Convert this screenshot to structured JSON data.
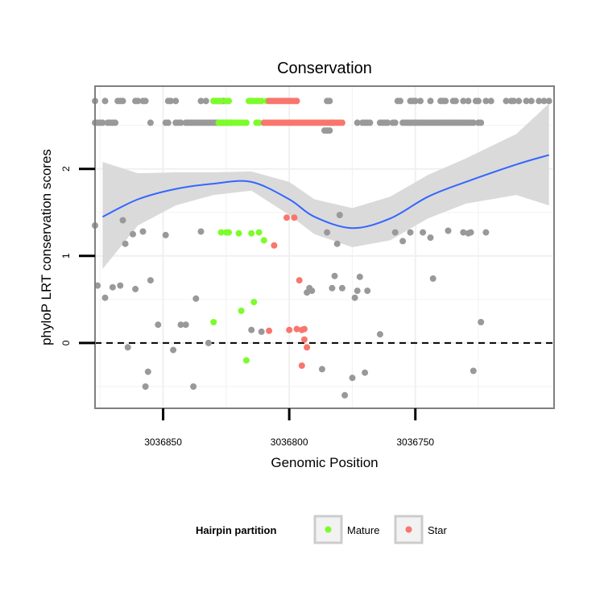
{
  "chart_data": {
    "type": "scatter",
    "title": "Conservation",
    "xlabel": "Genomic Position",
    "ylabel": "phyloP LRT conservation scores",
    "x_reversed": true,
    "xlim": [
      3036877,
      3036695
    ],
    "ylim": [
      -0.75,
      2.95
    ],
    "x_ticks": [
      3036850,
      3036800,
      3036750
    ],
    "x_tick_labels": [
      "3036850",
      "3036800",
      "3036750"
    ],
    "y_ticks": [
      0,
      1,
      2
    ],
    "y_tick_labels": [
      "0",
      "1",
      "2"
    ],
    "reference_line": {
      "y": 0,
      "style": "dashed"
    },
    "grid": true,
    "colors": {
      "Other": "#999999",
      "Mature": "#7cfc2a",
      "Star": "#f8766d",
      "smooth": "#3366ff",
      "ribbon": "#d6d6d6"
    },
    "legend": {
      "title": "Hairpin partition",
      "position": "bottom",
      "entries": [
        {
          "label": "Mature",
          "color": "#7cfc2a"
        },
        {
          "label": "Star",
          "color": "#f8766d"
        }
      ]
    },
    "smooth": {
      "x": [
        3036874,
        3036860,
        3036845,
        3036830,
        3036815,
        3036800,
        3036790,
        3036775,
        3036760,
        3036745,
        3036730,
        3036710,
        3036697
      ],
      "y": [
        1.45,
        1.65,
        1.77,
        1.83,
        1.85,
        1.65,
        1.45,
        1.32,
        1.43,
        1.68,
        1.85,
        2.05,
        2.16
      ],
      "ymin": [
        0.85,
        1.35,
        1.58,
        1.7,
        1.75,
        1.47,
        1.25,
        1.1,
        1.18,
        1.43,
        1.6,
        1.7,
        1.58
      ],
      "ymax": [
        2.08,
        1.95,
        1.96,
        1.96,
        1.97,
        1.85,
        1.65,
        1.55,
        1.68,
        1.93,
        2.12,
        2.4,
        2.75
      ]
    },
    "series": [
      {
        "name": "Other",
        "color": "#999999",
        "points": [
          [
            3036877,
            1.35
          ],
          [
            3036876,
            0.66
          ],
          [
            3036873,
            0.52
          ],
          [
            3036870,
            0.64
          ],
          [
            3036867,
            0.66
          ],
          [
            3036866,
            1.41
          ],
          [
            3036865,
            1.14
          ],
          [
            3036864,
            -0.05
          ],
          [
            3036862,
            1.25
          ],
          [
            3036861,
            0.62
          ],
          [
            3036858,
            1.28
          ],
          [
            3036857,
            -0.5
          ],
          [
            3036856,
            -0.33
          ],
          [
            3036855,
            0.72
          ],
          [
            3036852,
            0.21
          ],
          [
            3036849,
            1.24
          ],
          [
            3036846,
            -0.08
          ],
          [
            3036843,
            0.21
          ],
          [
            3036841,
            0.21
          ],
          [
            3036838,
            -0.5
          ],
          [
            3036837,
            0.51
          ],
          [
            3036835,
            1.28
          ],
          [
            3036832,
            0.0
          ],
          [
            3036815,
            0.15
          ],
          [
            3036811,
            0.13
          ],
          [
            3036793,
            0.58
          ],
          [
            3036792,
            0.63
          ],
          [
            3036791,
            0.6
          ],
          [
            3036787,
            -0.3
          ],
          [
            3036785,
            1.27
          ],
          [
            3036783,
            0.63
          ],
          [
            3036782,
            0.77
          ],
          [
            3036781,
            1.14
          ],
          [
            3036780,
            1.47
          ],
          [
            3036779,
            0.63
          ],
          [
            3036778,
            -0.6
          ],
          [
            3036775,
            -0.4
          ],
          [
            3036774,
            0.52
          ],
          [
            3036773,
            0.6
          ],
          [
            3036772,
            0.76
          ],
          [
            3036770,
            -0.34
          ],
          [
            3036769,
            0.6
          ],
          [
            3036764,
            0.1
          ],
          [
            3036758,
            1.27
          ],
          [
            3036755,
            1.17
          ],
          [
            3036752,
            1.27
          ],
          [
            3036747,
            1.27
          ],
          [
            3036744,
            1.21
          ],
          [
            3036743,
            0.74
          ],
          [
            3036737,
            1.29
          ],
          [
            3036731,
            1.27
          ],
          [
            3036729,
            1.26
          ],
          [
            3036728,
            1.27
          ],
          [
            3036727,
            -0.32
          ],
          [
            3036724,
            0.24
          ],
          [
            3036722,
            1.27
          ],
          [
            3036877,
            2.78
          ],
          [
            3036873,
            2.78
          ],
          [
            3036868,
            2.78
          ],
          [
            3036867,
            2.78
          ],
          [
            3036866,
            2.78
          ],
          [
            3036861,
            2.78
          ],
          [
            3036860,
            2.78
          ],
          [
            3036858,
            2.78
          ],
          [
            3036857,
            2.78
          ],
          [
            3036848,
            2.78
          ],
          [
            3036847,
            2.78
          ],
          [
            3036845,
            2.78
          ],
          [
            3036835,
            2.78
          ],
          [
            3036833,
            2.78
          ],
          [
            3036830,
            2.78
          ],
          [
            3036829,
            2.78
          ],
          [
            3036828,
            2.78
          ],
          [
            3036827,
            2.78
          ],
          [
            3036826,
            2.78
          ],
          [
            3036785,
            2.78
          ],
          [
            3036784,
            2.78
          ],
          [
            3036757,
            2.78
          ],
          [
            3036756,
            2.78
          ],
          [
            3036752,
            2.78
          ],
          [
            3036751,
            2.78
          ],
          [
            3036750,
            2.78
          ],
          [
            3036748,
            2.78
          ],
          [
            3036744,
            2.78
          ],
          [
            3036740,
            2.78
          ],
          [
            3036739,
            2.78
          ],
          [
            3036738,
            2.78
          ],
          [
            3036735,
            2.78
          ],
          [
            3036734,
            2.78
          ],
          [
            3036731,
            2.78
          ],
          [
            3036729,
            2.78
          ],
          [
            3036726,
            2.78
          ],
          [
            3036725,
            2.78
          ],
          [
            3036722,
            2.78
          ],
          [
            3036720,
            2.78
          ],
          [
            3036714,
            2.78
          ],
          [
            3036712,
            2.78
          ],
          [
            3036711,
            2.78
          ],
          [
            3036709,
            2.78
          ],
          [
            3036706,
            2.78
          ],
          [
            3036704,
            2.78
          ],
          [
            3036701,
            2.78
          ],
          [
            3036699,
            2.78
          ],
          [
            3036697,
            2.78
          ],
          [
            3036877,
            2.53
          ],
          [
            3036876,
            2.53
          ],
          [
            3036875,
            2.53
          ],
          [
            3036874,
            2.53
          ],
          [
            3036872,
            2.53
          ],
          [
            3036871,
            2.53
          ],
          [
            3036870,
            2.53
          ],
          [
            3036869,
            2.53
          ],
          [
            3036855,
            2.53
          ],
          [
            3036849,
            2.53
          ],
          [
            3036848,
            2.53
          ],
          [
            3036845,
            2.53
          ],
          [
            3036844,
            2.53
          ],
          [
            3036843,
            2.53
          ],
          [
            3036841,
            2.53
          ],
          [
            3036840,
            2.53
          ],
          [
            3036839,
            2.53
          ],
          [
            3036838,
            2.53
          ],
          [
            3036837,
            2.53
          ],
          [
            3036836,
            2.53
          ],
          [
            3036835,
            2.53
          ],
          [
            3036834,
            2.53
          ],
          [
            3036833,
            2.53
          ],
          [
            3036832,
            2.53
          ],
          [
            3036831,
            2.53
          ],
          [
            3036830,
            2.53
          ],
          [
            3036829,
            2.53
          ],
          [
            3036828,
            2.53
          ],
          [
            3036827,
            2.53
          ],
          [
            3036826,
            2.53
          ],
          [
            3036825,
            2.53
          ],
          [
            3036824,
            2.53
          ],
          [
            3036823,
            2.53
          ],
          [
            3036786,
            2.44
          ],
          [
            3036785,
            2.44
          ],
          [
            3036784,
            2.44
          ],
          [
            3036783,
            2.53
          ],
          [
            3036773,
            2.53
          ],
          [
            3036771,
            2.53
          ],
          [
            3036770,
            2.53
          ],
          [
            3036769,
            2.53
          ],
          [
            3036768,
            2.53
          ],
          [
            3036764,
            2.53
          ],
          [
            3036763,
            2.53
          ],
          [
            3036762,
            2.53
          ],
          [
            3036761,
            2.53
          ],
          [
            3036759,
            2.53
          ],
          [
            3036758,
            2.53
          ],
          [
            3036755,
            2.53
          ],
          [
            3036754,
            2.53
          ],
          [
            3036753,
            2.53
          ],
          [
            3036752,
            2.53
          ],
          [
            3036751,
            2.53
          ],
          [
            3036750,
            2.53
          ],
          [
            3036749,
            2.53
          ],
          [
            3036748,
            2.53
          ],
          [
            3036747,
            2.53
          ],
          [
            3036746,
            2.53
          ],
          [
            3036745,
            2.53
          ],
          [
            3036744,
            2.53
          ],
          [
            3036743,
            2.53
          ],
          [
            3036742,
            2.53
          ],
          [
            3036741,
            2.53
          ],
          [
            3036740,
            2.53
          ],
          [
            3036739,
            2.53
          ],
          [
            3036738,
            2.53
          ],
          [
            3036737,
            2.53
          ],
          [
            3036736,
            2.53
          ],
          [
            3036735,
            2.53
          ],
          [
            3036734,
            2.53
          ],
          [
            3036733,
            2.53
          ],
          [
            3036732,
            2.53
          ],
          [
            3036731,
            2.53
          ],
          [
            3036730,
            2.53
          ],
          [
            3036729,
            2.53
          ],
          [
            3036728,
            2.53
          ],
          [
            3036727,
            2.53
          ],
          [
            3036725,
            2.53
          ],
          [
            3036724,
            2.53
          ]
        ]
      },
      {
        "name": "Mature",
        "color": "#7cfc2a",
        "points": [
          [
            3036830,
            2.78
          ],
          [
            3036829,
            2.78
          ],
          [
            3036828,
            2.78
          ],
          [
            3036827,
            2.78
          ],
          [
            3036825,
            2.78
          ],
          [
            3036824,
            2.78
          ],
          [
            3036824,
            2.78
          ],
          [
            3036816,
            2.78
          ],
          [
            3036815,
            2.78
          ],
          [
            3036814,
            2.78
          ],
          [
            3036813,
            2.78
          ],
          [
            3036812,
            2.78
          ],
          [
            3036811,
            2.78
          ],
          [
            3036809,
            2.78
          ],
          [
            3036828,
            2.53
          ],
          [
            3036827,
            2.53
          ],
          [
            3036826,
            2.53
          ],
          [
            3036825,
            2.53
          ],
          [
            3036824,
            2.53
          ],
          [
            3036823,
            2.53
          ],
          [
            3036822,
            2.53
          ],
          [
            3036821,
            2.53
          ],
          [
            3036820,
            2.53
          ],
          [
            3036819,
            2.53
          ],
          [
            3036818,
            2.53
          ],
          [
            3036817,
            2.53
          ],
          [
            3036813,
            2.53
          ],
          [
            3036812,
            2.53
          ],
          [
            3036827,
            1.27
          ],
          [
            3036825,
            1.27
          ],
          [
            3036824,
            1.27
          ],
          [
            3036820,
            1.26
          ],
          [
            3036815,
            1.26
          ],
          [
            3036810,
            1.18
          ],
          [
            3036812,
            1.27
          ],
          [
            3036819,
            0.37
          ],
          [
            3036817,
            -0.2
          ],
          [
            3036814,
            0.47
          ],
          [
            3036830,
            0.24
          ]
        ]
      },
      {
        "name": "Star",
        "color": "#f8766d",
        "points": [
          [
            3036808,
            2.78
          ],
          [
            3036807,
            2.78
          ],
          [
            3036806,
            2.78
          ],
          [
            3036805,
            2.78
          ],
          [
            3036804,
            2.78
          ],
          [
            3036803,
            2.78
          ],
          [
            3036802,
            2.78
          ],
          [
            3036801,
            2.78
          ],
          [
            3036800,
            2.78
          ],
          [
            3036799,
            2.78
          ],
          [
            3036798,
            2.78
          ],
          [
            3036797,
            2.78
          ],
          [
            3036810,
            2.53
          ],
          [
            3036809,
            2.53
          ],
          [
            3036808,
            2.53
          ],
          [
            3036807,
            2.53
          ],
          [
            3036806,
            2.53
          ],
          [
            3036805,
            2.53
          ],
          [
            3036804,
            2.53
          ],
          [
            3036803,
            2.53
          ],
          [
            3036802,
            2.53
          ],
          [
            3036801,
            2.53
          ],
          [
            3036800,
            2.53
          ],
          [
            3036799,
            2.53
          ],
          [
            3036798,
            2.53
          ],
          [
            3036797,
            2.53
          ],
          [
            3036796,
            2.53
          ],
          [
            3036795,
            2.53
          ],
          [
            3036794,
            2.53
          ],
          [
            3036793,
            2.53
          ],
          [
            3036792,
            2.53
          ],
          [
            3036791,
            2.53
          ],
          [
            3036790,
            2.53
          ],
          [
            3036789,
            2.53
          ],
          [
            3036788,
            2.53
          ],
          [
            3036787,
            2.53
          ],
          [
            3036786,
            2.53
          ],
          [
            3036785,
            2.53
          ],
          [
            3036784,
            2.53
          ],
          [
            3036783,
            2.53
          ],
          [
            3036782,
            2.53
          ],
          [
            3036781,
            2.53
          ],
          [
            3036780,
            2.53
          ],
          [
            3036779,
            2.53
          ],
          [
            3036806,
            1.12
          ],
          [
            3036801,
            1.44
          ],
          [
            3036798,
            1.44
          ],
          [
            3036796,
            0.72
          ],
          [
            3036800,
            0.15
          ],
          [
            3036808,
            0.14
          ],
          [
            3036797,
            0.16
          ],
          [
            3036795,
            0.15
          ],
          [
            3036794,
            0.16
          ],
          [
            3036794,
            0.04
          ],
          [
            3036793,
            -0.05
          ],
          [
            3036795,
            -0.26
          ]
        ]
      }
    ]
  }
}
